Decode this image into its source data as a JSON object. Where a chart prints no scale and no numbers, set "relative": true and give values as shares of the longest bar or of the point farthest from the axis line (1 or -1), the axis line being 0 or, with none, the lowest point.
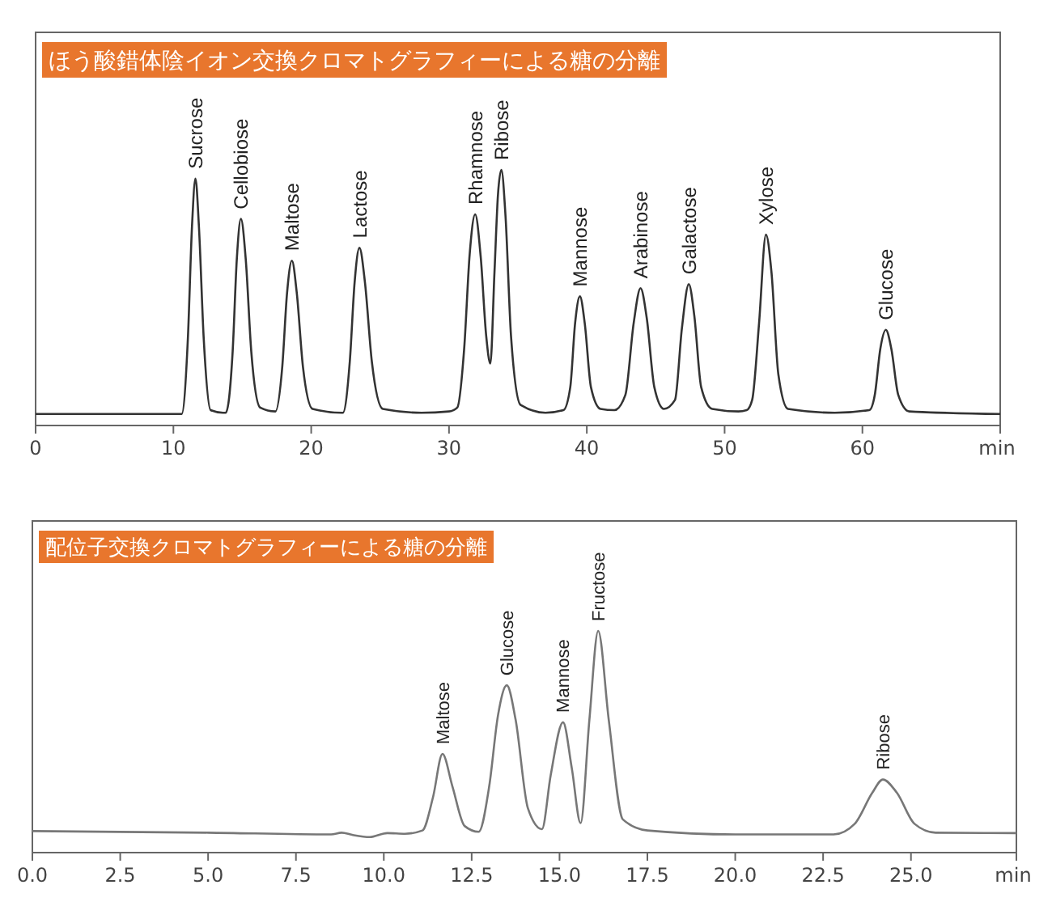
{
  "chart_data": [
    {
      "type": "line",
      "title": "ほう酸錯体陰イオン交換クロマトグラフィーによる糖の分離",
      "xlabel": "min",
      "relative": true,
      "xlim": [
        0,
        70
      ],
      "xticks": [
        0,
        10,
        20,
        30,
        40,
        50,
        60
      ],
      "x": [
        0,
        10.5,
        10.6,
        11.05,
        11.35,
        11.6,
        11.85,
        12.2,
        12.7,
        13.6,
        13.8,
        14.3,
        14.6,
        14.9,
        15.25,
        15.65,
        16.3,
        17.4,
        17.9,
        18.25,
        18.6,
        18.95,
        19.4,
        20.1,
        22.2,
        22.3,
        22.8,
        23.15,
        23.5,
        23.9,
        24.4,
        25.2,
        28,
        30,
        30.6,
        31.1,
        31.5,
        31.9,
        32.3,
        32.7,
        33.0,
        33.3,
        33.55,
        33.8,
        34.1,
        34.5,
        35.2,
        37,
        38.3,
        38.8,
        39.15,
        39.5,
        39.85,
        40.3,
        41,
        42,
        42.8,
        43.4,
        43.9,
        44.35,
        44.9,
        45.6,
        46.4,
        46.9,
        47.4,
        47.8,
        48.3,
        49.1,
        51,
        51.6,
        52,
        52.5,
        53,
        53.4,
        53.9,
        54.6,
        58,
        60.5,
        60.9,
        61.3,
        61.7,
        62.1,
        62.6,
        63.4,
        70
      ],
      "series": [
        {
          "color": "#333333",
          "values": [
            0.045,
            0.045,
            0.045,
            0.34,
            0.78,
            0.966,
            0.78,
            0.34,
            0.06,
            0.05,
            0.05,
            0.29,
            0.65,
            0.808,
            0.65,
            0.29,
            0.07,
            0.055,
            0.23,
            0.52,
            0.645,
            0.52,
            0.23,
            0.065,
            0.05,
            0.05,
            0.25,
            0.56,
            0.695,
            0.56,
            0.25,
            0.065,
            0.05,
            0.055,
            0.07,
            0.3,
            0.67,
            0.826,
            0.66,
            0.35,
            0.242,
            0.6,
            0.9,
            1,
            0.82,
            0.35,
            0.08,
            0.05,
            0.06,
            0.15,
            0.4,
            0.505,
            0.4,
            0.15,
            0.065,
            0.06,
            0.12,
            0.4,
            0.537,
            0.42,
            0.15,
            0.065,
            0.1,
            0.38,
            0.553,
            0.43,
            0.15,
            0.065,
            0.055,
            0.06,
            0.1,
            0.4,
            0.747,
            0.6,
            0.2,
            0.065,
            0.05,
            0.06,
            0.12,
            0.3,
            0.374,
            0.3,
            0.12,
            0.055,
            0.045
          ]
        }
      ],
      "annotations": [
        {
          "text": "Sucrose",
          "x": 11.6,
          "y": 0.966
        },
        {
          "text": "Cellobiose",
          "x": 14.9,
          "y": 0.808
        },
        {
          "text": "Maltose",
          "x": 18.6,
          "y": 0.645
        },
        {
          "text": "Lactose",
          "x": 23.5,
          "y": 0.695
        },
        {
          "text": "Rhamnose",
          "x": 31.9,
          "y": 0.826
        },
        {
          "text": "Ribose",
          "x": 33.8,
          "y": 1
        },
        {
          "text": "Mannose",
          "x": 39.5,
          "y": 0.505
        },
        {
          "text": "Arabinose",
          "x": 43.9,
          "y": 0.537
        },
        {
          "text": "Galactose",
          "x": 47.4,
          "y": 0.553
        },
        {
          "text": "Xylose",
          "x": 53,
          "y": 0.747
        },
        {
          "text": "Glucose",
          "x": 61.7,
          "y": 0.374
        }
      ]
    },
    {
      "type": "line",
      "title": "配位子交換クロマトグラフィーによる糖の分離",
      "xlabel": "min",
      "relative": true,
      "xlim": [
        0,
        28
      ],
      "xticks": [
        {
          "value": 0,
          "label": "0.0"
        },
        {
          "value": 2.5,
          "label": "2.5"
        },
        {
          "value": 5,
          "label": "5.0"
        },
        {
          "value": 7.5,
          "label": "7.5"
        },
        {
          "value": 10,
          "label": "10.0"
        },
        {
          "value": 12.5,
          "label": "12.5"
        },
        {
          "value": 15,
          "label": "15.0"
        },
        {
          "value": 17.5,
          "label": "17.5"
        },
        {
          "value": 20,
          "label": "20.0"
        },
        {
          "value": 22.5,
          "label": "22.5"
        },
        {
          "value": 25,
          "label": "25.0"
        }
      ],
      "x": [
        0,
        5,
        8.5,
        8.8,
        9.1,
        9.6,
        10.1,
        10.6,
        11.1,
        11.4,
        11.67,
        11.95,
        12.3,
        12.7,
        13.0,
        13.25,
        13.5,
        13.75,
        14.1,
        14.5,
        14.75,
        15.1,
        15.35,
        15.6,
        15.85,
        16.1,
        16.4,
        16.8,
        17.5,
        20,
        22.8,
        23.4,
        23.9,
        24.2,
        24.6,
        25.1,
        25.7,
        28
      ],
      "series": [
        {
          "color": "#777777",
          "values": [
            0.097,
            0.09,
            0.082,
            0.09,
            0.08,
            0.07,
            0.088,
            0.085,
            0.1,
            0.25,
            0.445,
            0.3,
            0.12,
            0.094,
            0.3,
            0.62,
            0.755,
            0.6,
            0.2,
            0.106,
            0.35,
            0.588,
            0.38,
            0.133,
            0.6,
            1,
            0.6,
            0.15,
            0.1,
            0.082,
            0.082,
            0.13,
            0.27,
            0.33,
            0.27,
            0.13,
            0.09,
            0.088
          ]
        }
      ],
      "annotations": [
        {
          "text": "Maltose",
          "x": 11.67,
          "y": 0.445
        },
        {
          "text": "Glucose",
          "x": 13.5,
          "y": 0.755
        },
        {
          "text": "Mannose",
          "x": 15.1,
          "y": 0.588
        },
        {
          "text": "Fructose",
          "x": 16.1,
          "y": 1
        },
        {
          "text": "Ribose",
          "x": 24.2,
          "y": 0.33
        }
      ]
    }
  ]
}
